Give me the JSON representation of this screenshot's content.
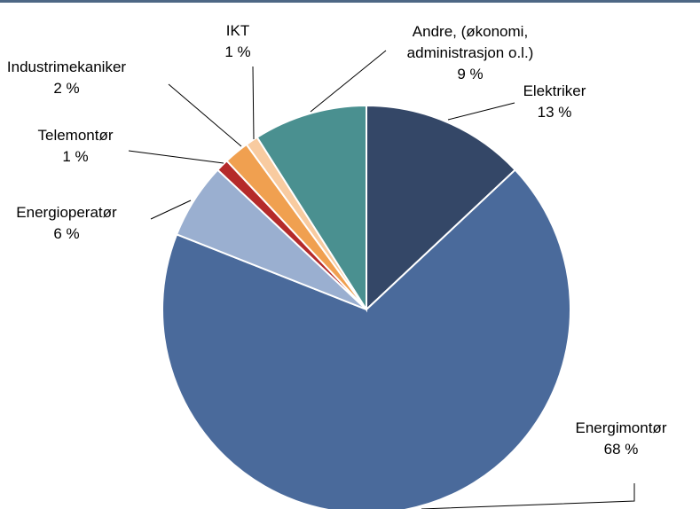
{
  "chart_data": {
    "type": "pie",
    "categories": [
      "Elektriker",
      "Energimontør",
      "Energioperatør",
      "Telemontør",
      "Industrimekaniker",
      "IKT",
      "Andre, (økonomi, administrasjon o.l.)"
    ],
    "values": [
      13,
      68,
      6,
      1,
      2,
      1,
      9
    ],
    "value_labels": [
      "13 %",
      "68 %",
      "6 %",
      "1 %",
      "2 %",
      "1 %",
      "9 %"
    ],
    "colors": [
      "#344767",
      "#4a6a9b",
      "#9aafd0",
      "#b52a2a",
      "#f0a050",
      "#f8cba0",
      "#4a9090"
    ]
  }
}
